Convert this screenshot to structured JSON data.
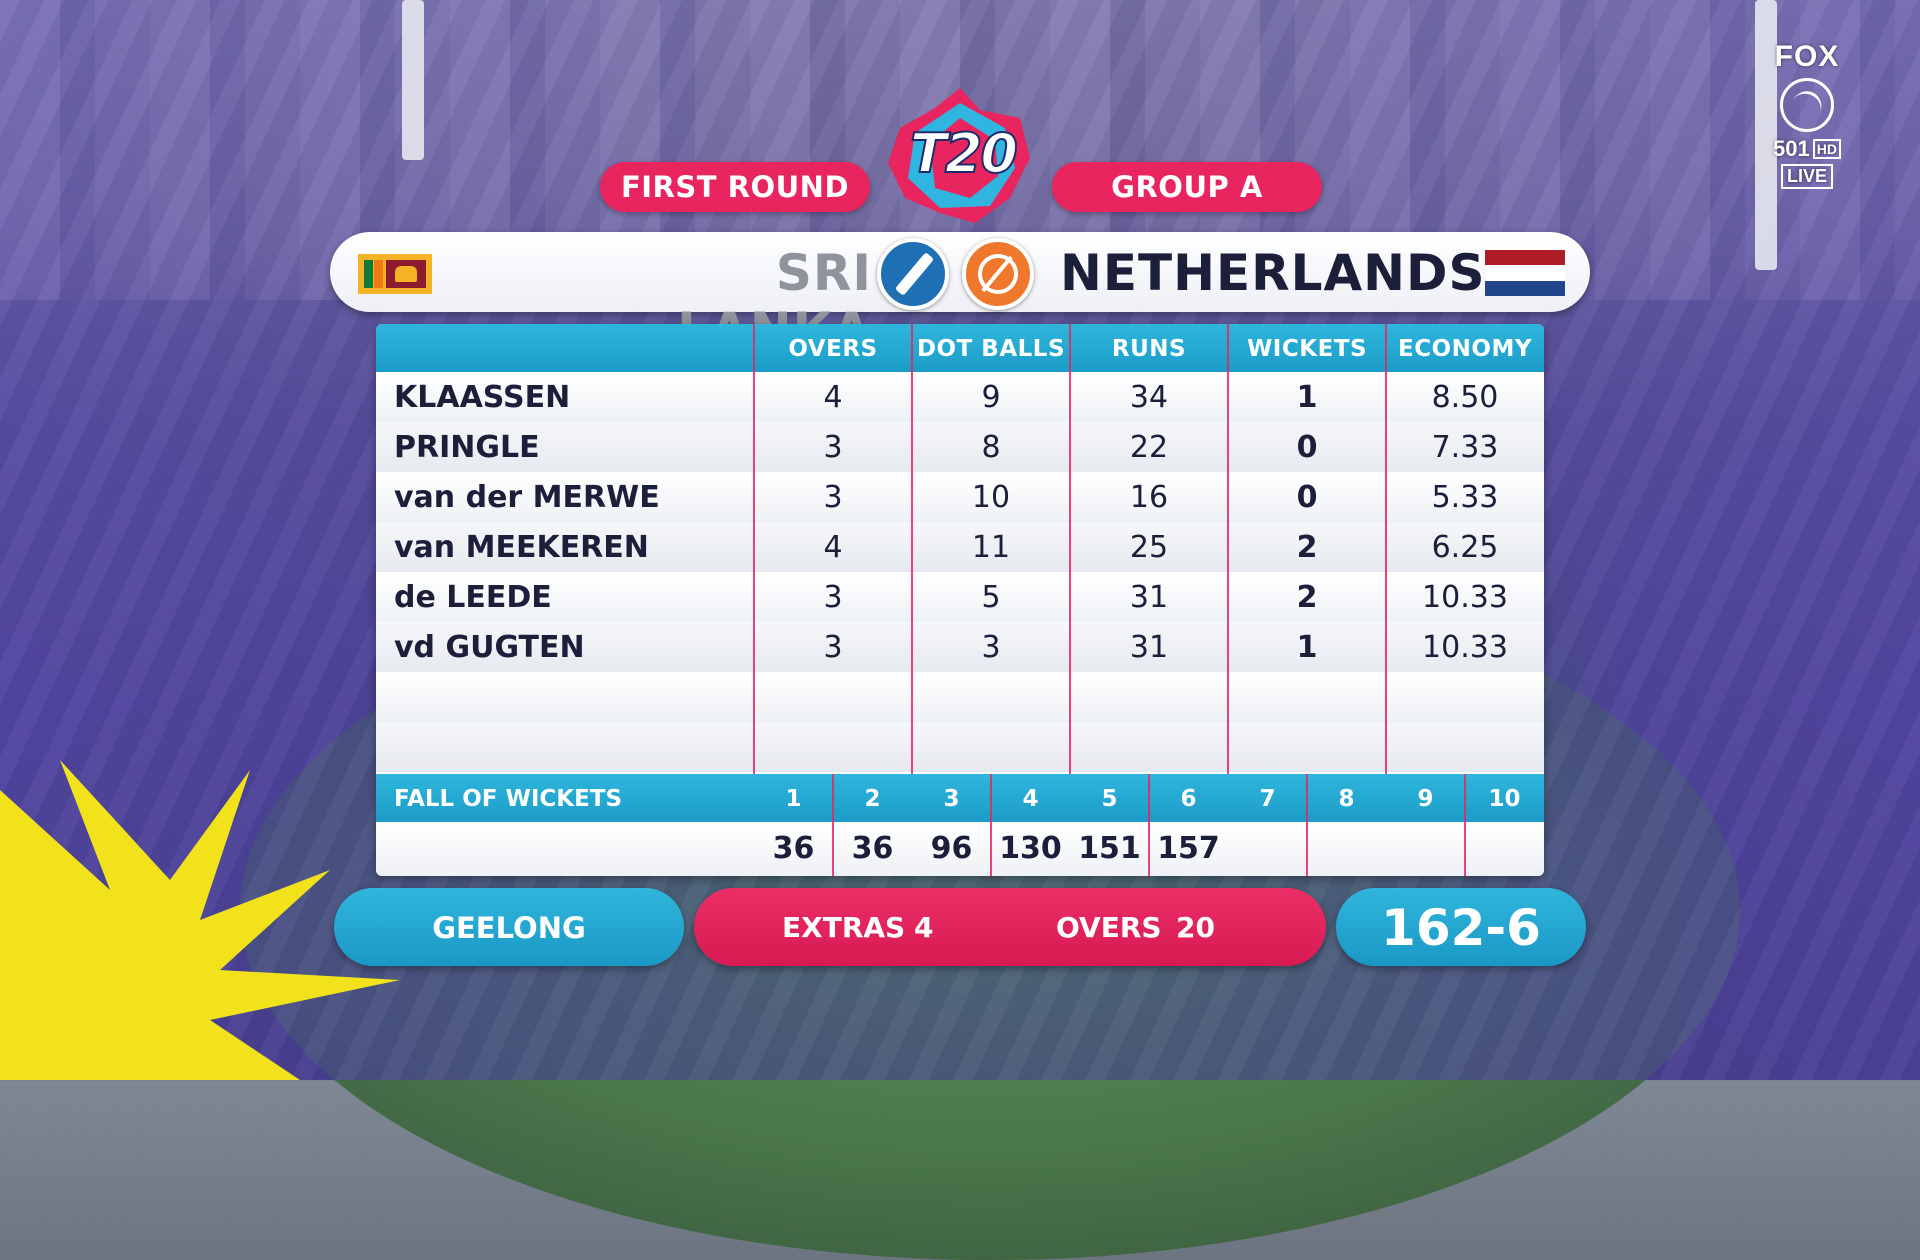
{
  "header": {
    "round": "FIRST ROUND",
    "group": "GROUP A",
    "tournament_logo": "T20"
  },
  "network": {
    "brand": "FOX",
    "channel": "501",
    "hd": "HD",
    "live": "LIVE"
  },
  "teams": {
    "batting": {
      "name": "SRI LANKA",
      "flag_icon": "sri-lanka-flag",
      "role_icon": "bat-icon"
    },
    "bowling": {
      "name": "NETHERLANDS",
      "flag_icon": "netherlands-flag",
      "role_icon": "ball-icon"
    }
  },
  "columns": [
    "OVERS",
    "DOT BALLS",
    "RUNS",
    "WICKETS",
    "ECONOMY"
  ],
  "bowlers": [
    {
      "name": "KLAASSEN",
      "overs": "4",
      "dot_balls": "9",
      "runs": "34",
      "wickets": "1",
      "economy": "8.50"
    },
    {
      "name": "PRINGLE",
      "overs": "3",
      "dot_balls": "8",
      "runs": "22",
      "wickets": "0",
      "economy": "7.33"
    },
    {
      "name": "van der MERWE",
      "overs": "3",
      "dot_balls": "10",
      "runs": "16",
      "wickets": "0",
      "economy": "5.33"
    },
    {
      "name": "van MEEKEREN",
      "overs": "4",
      "dot_balls": "11",
      "runs": "25",
      "wickets": "2",
      "economy": "6.25"
    },
    {
      "name": "de LEEDE",
      "overs": "3",
      "dot_balls": "5",
      "runs": "31",
      "wickets": "2",
      "economy": "10.33"
    },
    {
      "name": "vd GUGTEN",
      "overs": "3",
      "dot_balls": "3",
      "runs": "31",
      "wickets": "1",
      "economy": "10.33"
    }
  ],
  "fall_of_wickets": {
    "label": "FALL OF WICKETS",
    "numbers": [
      "1",
      "2",
      "3",
      "4",
      "5",
      "6",
      "7",
      "8",
      "9",
      "10"
    ],
    "scores": [
      "36",
      "36",
      "96",
      "130",
      "151",
      "157",
      "",
      "",
      "",
      ""
    ]
  },
  "footer": {
    "venue": "GEELONG",
    "extras_label": "EXTRAS",
    "extras_value": "4",
    "overs_label": "OVERS",
    "overs_value": "20",
    "total": "162-6"
  },
  "colors": {
    "accent_pink": "#e8255f",
    "accent_blue": "#1b9cc8",
    "text_dark": "#1b1f3a",
    "batting_grey": "#8e939c"
  }
}
